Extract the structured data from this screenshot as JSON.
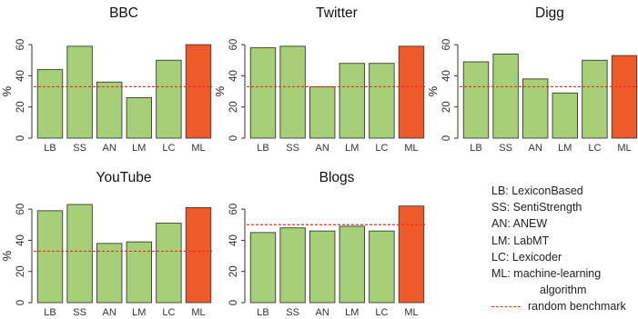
{
  "colors": {
    "bar": "#a6cf78",
    "bar_highlight": "#ef5a2a",
    "benchmark": "#e8301c",
    "axis": "#333333"
  },
  "chart_data": [
    {
      "type": "bar",
      "title": "BBC",
      "ylabel": "%",
      "ylim": [
        0,
        70
      ],
      "yticks": [
        0,
        20,
        40,
        60
      ],
      "categories": [
        "LB",
        "SS",
        "AN",
        "LM",
        "LC",
        "ML"
      ],
      "values": [
        44,
        59,
        36,
        26,
        50,
        60
      ],
      "benchmark": 33,
      "highlight": "ML"
    },
    {
      "type": "bar",
      "title": "Twitter",
      "ylabel": "%",
      "ylim": [
        0,
        70
      ],
      "yticks": [
        0,
        20,
        40,
        60
      ],
      "categories": [
        "LB",
        "SS",
        "AN",
        "LM",
        "LC",
        "ML"
      ],
      "values": [
        58,
        59,
        33,
        48,
        48,
        59
      ],
      "benchmark": 33,
      "highlight": "ML"
    },
    {
      "type": "bar",
      "title": "Digg",
      "ylabel": "%",
      "ylim": [
        0,
        70
      ],
      "yticks": [
        0,
        20,
        40,
        60
      ],
      "categories": [
        "LB",
        "SS",
        "AN",
        "LM",
        "LC",
        "ML"
      ],
      "values": [
        49,
        54,
        38,
        29,
        50,
        53
      ],
      "benchmark": 33,
      "highlight": "ML"
    },
    {
      "type": "bar",
      "title": "YouTube",
      "ylabel": "%",
      "ylim": [
        0,
        70
      ],
      "yticks": [
        0,
        20,
        40,
        60
      ],
      "categories": [
        "LB",
        "SS",
        "AN",
        "LM",
        "LC",
        "ML"
      ],
      "values": [
        59,
        63,
        38,
        39,
        51,
        61
      ],
      "benchmark": 33,
      "highlight": "ML"
    },
    {
      "type": "bar",
      "title": "Blogs",
      "ylabel": "",
      "ylim": [
        0,
        70
      ],
      "yticks": [
        0,
        20,
        40,
        60
      ],
      "categories": [
        "LB",
        "SS",
        "AN",
        "LM",
        "LC",
        "ML"
      ],
      "values": [
        45,
        48,
        46,
        49,
        46,
        62
      ],
      "benchmark": 50,
      "highlight": "ML"
    }
  ],
  "legend": {
    "items": [
      "LB: LexiconBased",
      "SS: SentiStrength",
      "AN: ANEW",
      "LM: LabMT",
      "LC: Lexicoder",
      "ML: machine-learning",
      "algorithm"
    ],
    "benchmark_label": "random benchmark"
  }
}
